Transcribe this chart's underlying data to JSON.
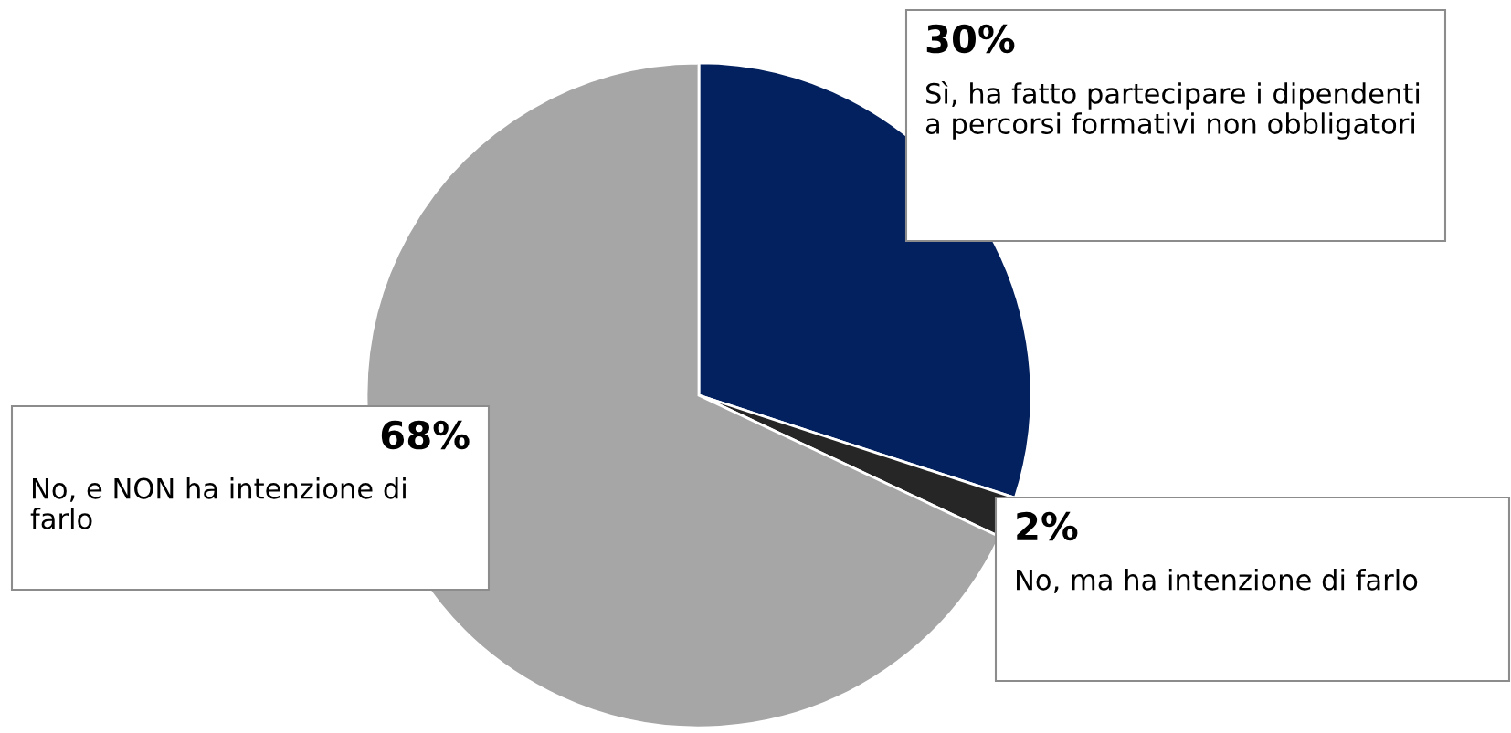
{
  "chart_data": {
    "type": "pie",
    "categories": [
      "Sì, ha fatto partecipare i dipendenti a percorsi formativi non obbligatori",
      "No, ma ha intenzione di farlo",
      "No, e NON ha intenzione di farlo"
    ],
    "values": [
      30,
      2,
      68
    ],
    "colors": [
      "#03215f",
      "#262626",
      "#a6a6a6"
    ],
    "value_labels": [
      "30%",
      "2%",
      "68%"
    ]
  }
}
